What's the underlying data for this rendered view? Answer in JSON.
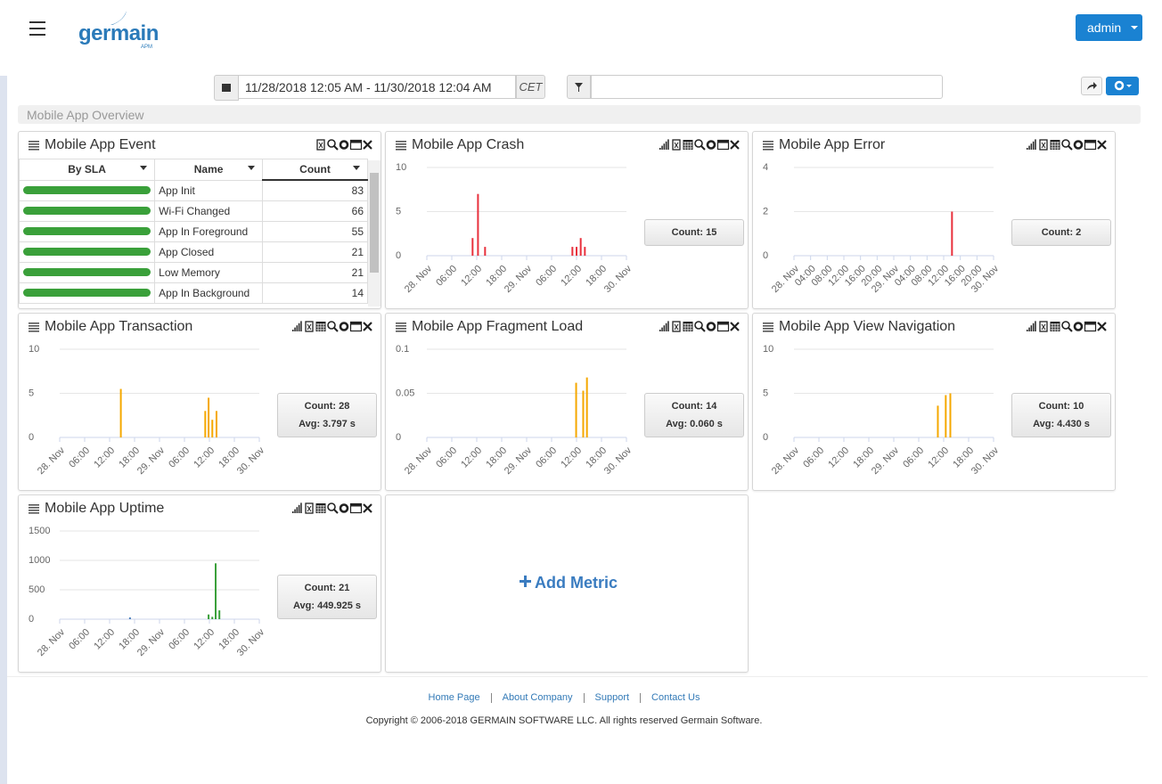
{
  "header": {
    "logo": "germain",
    "logo_sub": "APM",
    "user_menu": "admin"
  },
  "toolbar": {
    "date_range": "11/28/2018 12:05 AM - 11/30/2018 12:04 AM",
    "timezone": "CET"
  },
  "breadcrumb": "Mobile App Overview",
  "widgets": [
    {
      "title": "Mobile App Event",
      "type": "table",
      "columns": [
        "By SLA",
        "Name",
        "Count"
      ],
      "rows": [
        [
          "App Init",
          83
        ],
        [
          "Wi-Fi Changed",
          66
        ],
        [
          "App In Foreground",
          55
        ],
        [
          "App Closed",
          21
        ],
        [
          "Low Memory",
          21
        ],
        [
          "App In Background",
          14
        ]
      ]
    },
    {
      "title": "Mobile App Crash",
      "type": "bar",
      "color": "#e8303c",
      "xlim": [
        0,
        48
      ],
      "xticks": [
        {
          "value": 0,
          "label": "28. Nov"
        },
        {
          "value": 6,
          "label": "06:00"
        },
        {
          "value": 12,
          "label": "12:00"
        },
        {
          "value": 18,
          "label": "18:00"
        },
        {
          "value": 24,
          "label": "29. Nov"
        },
        {
          "value": 30,
          "label": "06:00"
        },
        {
          "value": 36,
          "label": "12:00"
        },
        {
          "value": 42,
          "label": "18:00"
        },
        {
          "value": 48,
          "label": "30. Nov"
        }
      ],
      "ylim": [
        0,
        10
      ],
      "yticks": [
        0,
        5,
        10
      ],
      "x": [
        11,
        12.3,
        14,
        35,
        36,
        37,
        38
      ],
      "values": [
        2,
        7,
        1,
        1,
        1,
        2,
        1
      ],
      "summary": [
        "Count: 15"
      ]
    },
    {
      "title": "Mobile App Error",
      "type": "bar",
      "color": "#e8303c",
      "xlim": [
        0,
        48
      ],
      "xticks": [
        {
          "value": 0,
          "label": "28. Nov"
        },
        {
          "value": 4,
          "label": "04:00"
        },
        {
          "value": 8,
          "label": "08:00"
        },
        {
          "value": 12,
          "label": "12:00"
        },
        {
          "value": 16,
          "label": "16:00"
        },
        {
          "value": 20,
          "label": "20:00"
        },
        {
          "value": 24,
          "label": "29. Nov"
        },
        {
          "value": 28,
          "label": "04:00"
        },
        {
          "value": 32,
          "label": "08:00"
        },
        {
          "value": 36,
          "label": "12:00"
        },
        {
          "value": 40,
          "label": "16:00"
        },
        {
          "value": 44,
          "label": "20:00"
        },
        {
          "value": 48,
          "label": "30. Nov"
        }
      ],
      "ylim": [
        0,
        4
      ],
      "yticks": [
        0,
        2,
        4
      ],
      "x": [
        38
      ],
      "values": [
        2
      ],
      "summary": [
        "Count: 2"
      ]
    },
    {
      "title": "Mobile App Transaction",
      "type": "bar",
      "color": "#f5a800",
      "xlim": [
        0,
        48
      ],
      "xticks": [
        {
          "value": 0,
          "label": "28. Nov"
        },
        {
          "value": 6,
          "label": "06:00"
        },
        {
          "value": 12,
          "label": "12:00"
        },
        {
          "value": 18,
          "label": "18:00"
        },
        {
          "value": 24,
          "label": "29. Nov"
        },
        {
          "value": 30,
          "label": "06:00"
        },
        {
          "value": 36,
          "label": "12:00"
        },
        {
          "value": 42,
          "label": "18:00"
        },
        {
          "value": 48,
          "label": "30. Nov"
        }
      ],
      "ylim": [
        0,
        10
      ],
      "yticks": [
        0,
        5,
        10
      ],
      "x": [
        14.7,
        35,
        35.8,
        36.7,
        37.7
      ],
      "values": [
        5.5,
        3,
        4.5,
        2,
        3
      ],
      "summary": [
        "Count: 28",
        "Avg: 3.797 s"
      ]
    },
    {
      "title": "Mobile App Fragment Load",
      "type": "bar",
      "color": "#f5a800",
      "xlim": [
        0,
        48
      ],
      "xticks": [
        {
          "value": 0,
          "label": "28. Nov"
        },
        {
          "value": 6,
          "label": "06:00"
        },
        {
          "value": 12,
          "label": "12:00"
        },
        {
          "value": 18,
          "label": "18:00"
        },
        {
          "value": 24,
          "label": "29. Nov"
        },
        {
          "value": 30,
          "label": "06:00"
        },
        {
          "value": 36,
          "label": "12:00"
        },
        {
          "value": 42,
          "label": "18:00"
        },
        {
          "value": 48,
          "label": "30. Nov"
        }
      ],
      "ylim": [
        0,
        0.1
      ],
      "yticks": [
        0,
        0.05,
        0.1
      ],
      "x": [
        35.9,
        37.6,
        38.5
      ],
      "values": [
        0.062,
        0.053,
        0.068
      ],
      "summary": [
        "Count: 14",
        "Avg: 0.060 s"
      ]
    },
    {
      "title": "Mobile App View Navigation",
      "type": "bar",
      "color": "#f5a800",
      "xlim": [
        0,
        48
      ],
      "xticks": [
        {
          "value": 0,
          "label": "28. Nov"
        },
        {
          "value": 6,
          "label": "06:00"
        },
        {
          "value": 12,
          "label": "12:00"
        },
        {
          "value": 18,
          "label": "18:00"
        },
        {
          "value": 24,
          "label": "29. Nov"
        },
        {
          "value": 30,
          "label": "06:00"
        },
        {
          "value": 36,
          "label": "12:00"
        },
        {
          "value": 42,
          "label": "18:00"
        },
        {
          "value": 48,
          "label": "30. Nov"
        }
      ],
      "ylim": [
        0,
        10
      ],
      "yticks": [
        0,
        5,
        10
      ],
      "x": [
        34.6,
        36.5,
        37.6
      ],
      "values": [
        3.6,
        4.8,
        5
      ],
      "summary": [
        "Count: 10",
        "Avg: 4.430 s"
      ]
    },
    {
      "title": "Mobile App Uptime",
      "type": "bar",
      "colors": [
        "#4a7ebb",
        "#3aa03a",
        "#3aa03a",
        "#3aa03a",
        "#3aa03a"
      ],
      "xlim": [
        0,
        48
      ],
      "xticks": [
        {
          "value": 0,
          "label": "28. Nov"
        },
        {
          "value": 6,
          "label": "06:00"
        },
        {
          "value": 12,
          "label": "12:00"
        },
        {
          "value": 18,
          "label": "18:00"
        },
        {
          "value": 24,
          "label": "29. Nov"
        },
        {
          "value": 30,
          "label": "06:00"
        },
        {
          "value": 36,
          "label": "12:00"
        },
        {
          "value": 42,
          "label": "18:00"
        },
        {
          "value": 48,
          "label": "30. Nov"
        }
      ],
      "ylim": [
        0,
        1500
      ],
      "yticks": [
        0,
        500,
        1000,
        1500
      ],
      "x": [
        16.9,
        35.8,
        36.7,
        37.5,
        38.4
      ],
      "values": [
        30,
        80,
        40,
        950,
        150
      ],
      "summary": [
        "Count: 21",
        "Avg: 449.925 s"
      ]
    }
  ],
  "add_metric": "Add Metric",
  "footer": {
    "links": [
      "Home Page",
      "About Company",
      "Support",
      "Contact Us"
    ],
    "copyright": "Copyright © 2006-2018 GERMAIN SOFTWARE LLC. All rights reserved Germain Software."
  }
}
